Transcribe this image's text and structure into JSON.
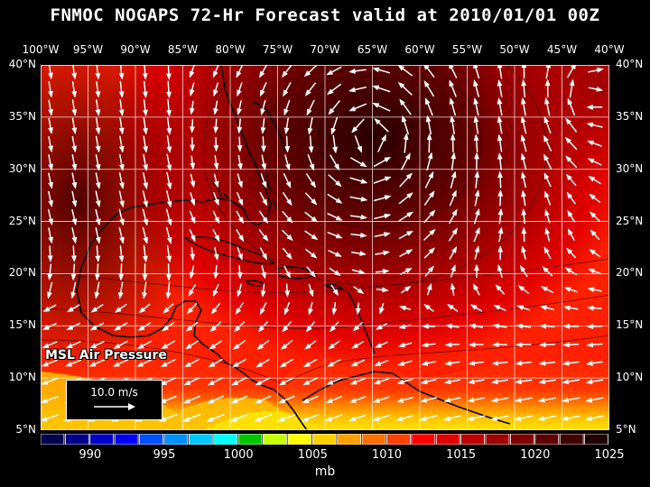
{
  "title": "FNMOC NOGAPS 72-Hr Forecast valid at 2010/01/01 00Z",
  "map": {
    "lon_range": [
      -100,
      -40
    ],
    "lat_range": [
      5,
      40
    ],
    "lon_labels": [
      "100°W",
      "95°W",
      "90°W",
      "85°W",
      "80°W",
      "75°W",
      "70°W",
      "65°W",
      "60°W",
      "55°W",
      "50°W",
      "45°W",
      "40°W"
    ],
    "lat_labels": [
      "40°N",
      "35°N",
      "30°N",
      "25°N",
      "20°N",
      "15°N",
      "10°N",
      "5°N"
    ],
    "field_label": "MSL Air Pressure",
    "vector_reference": "10.0 m/s",
    "low_center": {
      "lon": -65,
      "lat": 33
    },
    "high_center": {
      "lon": -42,
      "lat": 37
    }
  },
  "colorbar": {
    "unit": "mb",
    "labels": [
      "990",
      "995",
      "1000",
      "1005",
      "1010",
      "1015",
      "1020",
      "1025"
    ],
    "colors": [
      "#000050",
      "#00008c",
      "#0000c8",
      "#0000ff",
      "#0050ff",
      "#0090ff",
      "#00c8ff",
      "#00ffff",
      "#00c800",
      "#c8ff00",
      "#ffff00",
      "#ffd000",
      "#ffa000",
      "#ff7000",
      "#ff4000",
      "#ff0000",
      "#e00000",
      "#c00000",
      "#a00000",
      "#800000",
      "#600000",
      "#400000",
      "#200000"
    ]
  }
}
